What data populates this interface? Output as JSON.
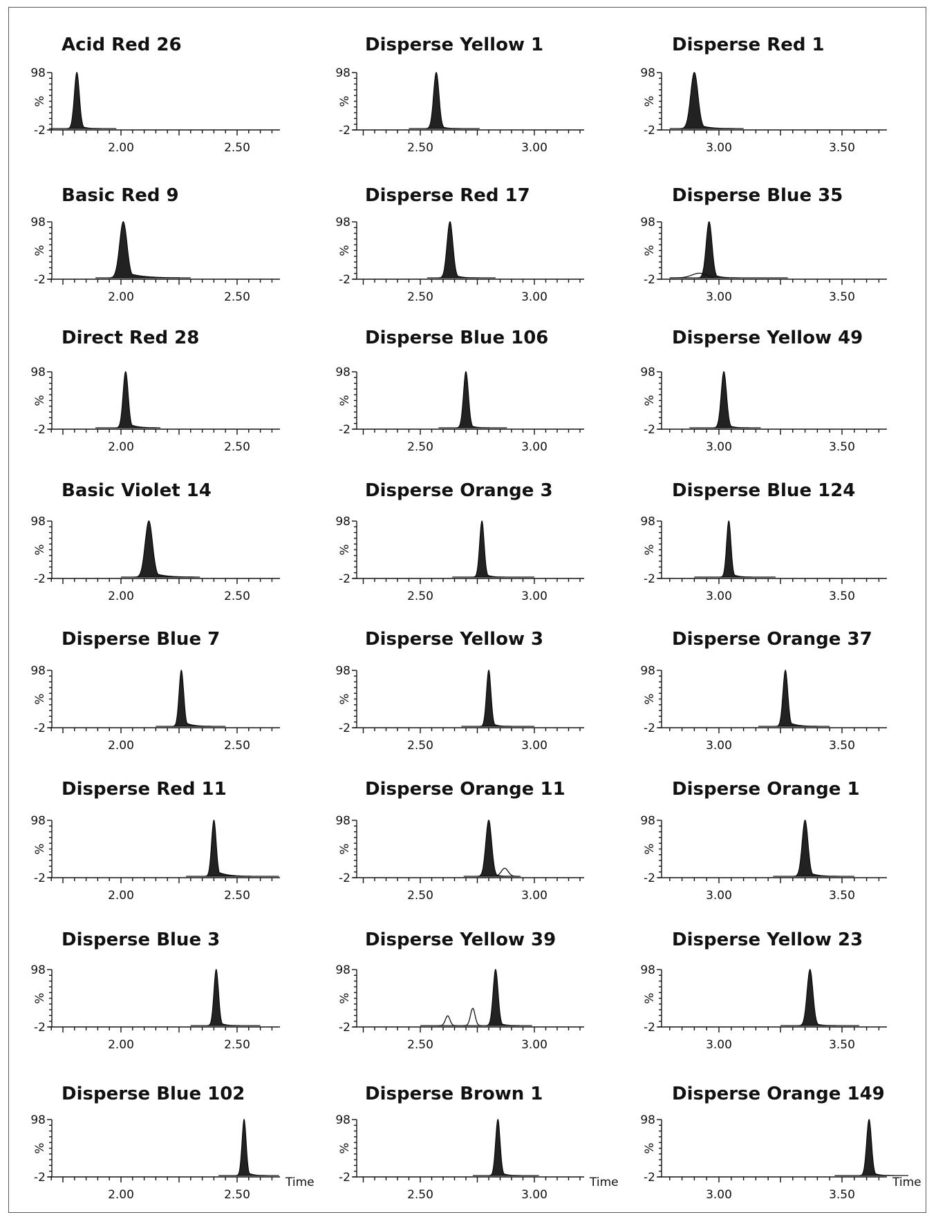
{
  "chart_data": [
    {
      "type": "line",
      "title": "Acid Red  26",
      "x_ticks": [
        "2.00",
        "2.50"
      ],
      "xlim": [
        1.7,
        2.7
      ],
      "y_ticks": [
        "98",
        "%",
        "-2"
      ],
      "ylim": [
        -2,
        98
      ],
      "baseline": [
        1.69,
        1.98
      ],
      "peaks": [
        {
          "rt": 1.81,
          "height": 98,
          "width": 0.011,
          "tail": 0.02
        }
      ]
    },
    {
      "type": "line",
      "title": "Disperse Yellow  1",
      "x_ticks": [
        "2.50",
        "3.00"
      ],
      "xlim": [
        2.2,
        3.2
      ],
      "y_ticks": [
        "98",
        "%",
        "-2"
      ],
      "ylim": [
        -2,
        98
      ],
      "baseline": [
        2.45,
        2.76
      ],
      "peaks": [
        {
          "rt": 2.57,
          "height": 98,
          "width": 0.012,
          "tail": 0.02
        }
      ]
    },
    {
      "type": "line",
      "title": "Disperse Red  1",
      "x_ticks": [
        "3.00",
        "3.50"
      ],
      "xlim": [
        2.75,
        3.75
      ],
      "y_ticks": [
        "98",
        "%",
        "-2"
      ],
      "ylim": [
        -2,
        98
      ],
      "baseline": [
        2.8,
        3.1
      ],
      "peaks": [
        {
          "rt": 2.9,
          "height": 98,
          "width": 0.015,
          "tail": 0.035
        }
      ]
    },
    {
      "type": "line",
      "title": "Basic Red  9",
      "x_ticks": [
        "2.00",
        "2.50"
      ],
      "xlim": [
        1.7,
        2.7
      ],
      "y_ticks": [
        "98",
        "%",
        "-2"
      ],
      "ylim": [
        -2,
        98
      ],
      "baseline": [
        1.89,
        2.3
      ],
      "peaks": [
        {
          "rt": 2.01,
          "height": 98,
          "width": 0.016,
          "tail": 0.06
        }
      ]
    },
    {
      "type": "line",
      "title": "Disperse Red  17",
      "x_ticks": [
        "2.50",
        "3.00"
      ],
      "xlim": [
        2.2,
        3.2
      ],
      "y_ticks": [
        "98",
        "%",
        "-2"
      ],
      "ylim": [
        -2,
        98
      ],
      "baseline": [
        2.53,
        2.83
      ],
      "peaks": [
        {
          "rt": 2.63,
          "height": 98,
          "width": 0.013,
          "tail": 0.025
        }
      ]
    },
    {
      "type": "line",
      "title": "Disperse Blue  35",
      "x_ticks": [
        "3.00",
        "3.50"
      ],
      "xlim": [
        2.75,
        3.75
      ],
      "y_ticks": [
        "98",
        "%",
        "-2"
      ],
      "ylim": [
        -2,
        98
      ],
      "baseline": [
        2.8,
        3.28
      ],
      "peaks": [
        {
          "rt": 2.96,
          "height": 98,
          "width": 0.012,
          "tail": 0.025
        },
        {
          "rt": 2.92,
          "height": 8,
          "width": 0.03,
          "tail": 0,
          "open": true
        }
      ]
    },
    {
      "type": "line",
      "title": "Direct Red  28",
      "x_ticks": [
        "2.00",
        "2.50"
      ],
      "xlim": [
        1.7,
        2.7
      ],
      "y_ticks": [
        "98",
        "%",
        "-2"
      ],
      "ylim": [
        -2,
        98
      ],
      "baseline": [
        1.89,
        2.17
      ],
      "peaks": [
        {
          "rt": 2.02,
          "height": 98,
          "width": 0.011,
          "tail": 0.03
        }
      ]
    },
    {
      "type": "line",
      "title": "Disperse Blue  106",
      "x_ticks": [
        "2.50",
        "3.00"
      ],
      "xlim": [
        2.2,
        3.2
      ],
      "y_ticks": [
        "98",
        "%",
        "-2"
      ],
      "ylim": [
        -2,
        98
      ],
      "baseline": [
        2.58,
        2.88
      ],
      "peaks": [
        {
          "rt": 2.7,
          "height": 98,
          "width": 0.011,
          "tail": 0.02
        }
      ]
    },
    {
      "type": "line",
      "title": "Disperse Yellow  49",
      "x_ticks": [
        "3.00",
        "3.50"
      ],
      "xlim": [
        2.75,
        3.75
      ],
      "y_ticks": [
        "98",
        "%",
        "-2"
      ],
      "ylim": [
        -2,
        98
      ],
      "baseline": [
        2.88,
        3.17
      ],
      "peaks": [
        {
          "rt": 3.02,
          "height": 98,
          "width": 0.011,
          "tail": 0.02
        }
      ]
    },
    {
      "type": "line",
      "title": "Basic Violet  14",
      "x_ticks": [
        "2.00",
        "2.50"
      ],
      "xlim": [
        1.7,
        2.7
      ],
      "y_ticks": [
        "98",
        "%",
        "-2"
      ],
      "ylim": [
        -2,
        98
      ],
      "baseline": [
        2.0,
        2.34
      ],
      "peaks": [
        {
          "rt": 2.12,
          "height": 98,
          "width": 0.016,
          "tail": 0.045
        }
      ]
    },
    {
      "type": "line",
      "title": "Disperse Orange  3",
      "x_ticks": [
        "2.50",
        "3.00"
      ],
      "xlim": [
        2.2,
        3.2
      ],
      "y_ticks": [
        "98",
        "%",
        "-2"
      ],
      "ylim": [
        -2,
        98
      ],
      "baseline": [
        2.64,
        3.0
      ],
      "peaks": [
        {
          "rt": 2.77,
          "height": 98,
          "width": 0.01,
          "tail": 0.02
        }
      ]
    },
    {
      "type": "line",
      "title": "Disperse Blue  124",
      "x_ticks": [
        "3.00",
        "3.50"
      ],
      "xlim": [
        2.75,
        3.75
      ],
      "y_ticks": [
        "98",
        "%",
        "-2"
      ],
      "ylim": [
        -2,
        98
      ],
      "baseline": [
        2.9,
        3.23
      ],
      "peaks": [
        {
          "rt": 3.04,
          "height": 98,
          "width": 0.009,
          "tail": 0.02
        }
      ]
    },
    {
      "type": "line",
      "title": "Disperse Blue  7",
      "x_ticks": [
        "2.00",
        "2.50"
      ],
      "xlim": [
        1.7,
        2.7
      ],
      "y_ticks": [
        "98",
        "%",
        "-2"
      ],
      "ylim": [
        -2,
        98
      ],
      "baseline": [
        2.15,
        2.45
      ],
      "peaks": [
        {
          "rt": 2.26,
          "height": 98,
          "width": 0.01,
          "tail": 0.03
        }
      ]
    },
    {
      "type": "line",
      "title": "Disperse Yellow  3",
      "x_ticks": [
        "2.50",
        "3.00"
      ],
      "xlim": [
        2.2,
        3.2
      ],
      "y_ticks": [
        "98",
        "%",
        "-2"
      ],
      "ylim": [
        -2,
        98
      ],
      "baseline": [
        2.68,
        3.0
      ],
      "peaks": [
        {
          "rt": 2.8,
          "height": 98,
          "width": 0.01,
          "tail": 0.02
        }
      ]
    },
    {
      "type": "line",
      "title": "Disperse Orange  37",
      "x_ticks": [
        "3.00",
        "3.50"
      ],
      "xlim": [
        2.75,
        3.75
      ],
      "y_ticks": [
        "98",
        "%",
        "-2"
      ],
      "ylim": [
        -2,
        98
      ],
      "baseline": [
        3.16,
        3.45
      ],
      "peaks": [
        {
          "rt": 3.27,
          "height": 98,
          "width": 0.01,
          "tail": 0.03
        }
      ]
    },
    {
      "type": "line",
      "title": "Disperse Red  11",
      "x_ticks": [
        "2.00",
        "2.50"
      ],
      "xlim": [
        1.7,
        2.7
      ],
      "y_ticks": [
        "98",
        "%",
        "-2"
      ],
      "ylim": [
        -2,
        98
      ],
      "baseline": [
        2.28,
        2.68
      ],
      "peaks": [
        {
          "rt": 2.4,
          "height": 98,
          "width": 0.01,
          "tail": 0.04
        }
      ]
    },
    {
      "type": "line",
      "title": "Disperse Orange  11",
      "x_ticks": [
        "2.50",
        "3.00"
      ],
      "xlim": [
        2.2,
        3.2
      ],
      "y_ticks": [
        "98",
        "%",
        "-2"
      ],
      "ylim": [
        -2,
        98
      ],
      "baseline": [
        2.69,
        2.94
      ],
      "peaks": [
        {
          "rt": 2.8,
          "height": 98,
          "width": 0.013,
          "tail": 0.02
        },
        {
          "rt": 2.87,
          "height": 14,
          "width": 0.015,
          "tail": 0,
          "open": true
        }
      ]
    },
    {
      "type": "line",
      "title": "Disperse Orange  1",
      "x_ticks": [
        "3.00",
        "3.50"
      ],
      "xlim": [
        2.75,
        3.75
      ],
      "y_ticks": [
        "98",
        "%",
        "-2"
      ],
      "ylim": [
        -2,
        98
      ],
      "baseline": [
        3.22,
        3.55
      ],
      "peaks": [
        {
          "rt": 3.35,
          "height": 98,
          "width": 0.012,
          "tail": 0.03
        }
      ]
    },
    {
      "type": "line",
      "title": "Disperse Blue  3",
      "x_ticks": [
        "2.00",
        "2.50"
      ],
      "xlim": [
        1.7,
        2.7
      ],
      "y_ticks": [
        "98",
        "%",
        "-2"
      ],
      "ylim": [
        -2,
        98
      ],
      "baseline": [
        2.3,
        2.6
      ],
      "peaks": [
        {
          "rt": 2.41,
          "height": 98,
          "width": 0.01,
          "tail": 0.02
        }
      ]
    },
    {
      "type": "line",
      "title": "Disperse Yellow  39",
      "x_ticks": [
        "2.50",
        "3.00"
      ],
      "xlim": [
        2.2,
        3.2
      ],
      "y_ticks": [
        "98",
        "%",
        "-2"
      ],
      "ylim": [
        -2,
        98
      ],
      "baseline": [
        2.5,
        2.99
      ],
      "peaks": [
        {
          "rt": 2.83,
          "height": 98,
          "width": 0.011,
          "tail": 0.02
        },
        {
          "rt": 2.62,
          "height": 17,
          "width": 0.01,
          "tail": 0,
          "open": true
        },
        {
          "rt": 2.73,
          "height": 30,
          "width": 0.01,
          "tail": 0,
          "open": true
        }
      ]
    },
    {
      "type": "line",
      "title": "Disperse Yellow  23",
      "x_ticks": [
        "3.00",
        "3.50"
      ],
      "xlim": [
        2.75,
        3.75
      ],
      "y_ticks": [
        "98",
        "%",
        "-2"
      ],
      "ylim": [
        -2,
        98
      ],
      "baseline": [
        3.25,
        3.57
      ],
      "peaks": [
        {
          "rt": 3.37,
          "height": 98,
          "width": 0.012,
          "tail": 0.02
        }
      ]
    },
    {
      "type": "line",
      "title": "Disperse Blue  102",
      "x_ticks": [
        "2.00",
        "2.50"
      ],
      "xlim": [
        1.7,
        2.7
      ],
      "y_ticks": [
        "98",
        "%",
        "-2"
      ],
      "ylim": [
        -2,
        98
      ],
      "x_label": "Time",
      "baseline": [
        2.42,
        2.68
      ],
      "peaks": [
        {
          "rt": 2.53,
          "height": 98,
          "width": 0.009,
          "tail": 0.02
        }
      ]
    },
    {
      "type": "line",
      "title": "Disperse Brown  1",
      "x_ticks": [
        "2.50",
        "3.00"
      ],
      "xlim": [
        2.2,
        3.2
      ],
      "y_ticks": [
        "98",
        "%",
        "-2"
      ],
      "ylim": [
        -2,
        98
      ],
      "x_label": "Time",
      "baseline": [
        2.73,
        3.02
      ],
      "peaks": [
        {
          "rt": 2.84,
          "height": 98,
          "width": 0.01,
          "tail": 0.02
        }
      ]
    },
    {
      "type": "line",
      "title": "Disperse Orange  149",
      "x_ticks": [
        "3.00",
        "3.50"
      ],
      "xlim": [
        2.75,
        3.75
      ],
      "y_ticks": [
        "98",
        "%",
        "-2"
      ],
      "ylim": [
        -2,
        98
      ],
      "x_label": "Time",
      "baseline": [
        3.47,
        3.77
      ],
      "peaks": [
        {
          "rt": 3.61,
          "height": 98,
          "width": 0.01,
          "tail": 0.02
        }
      ]
    }
  ]
}
